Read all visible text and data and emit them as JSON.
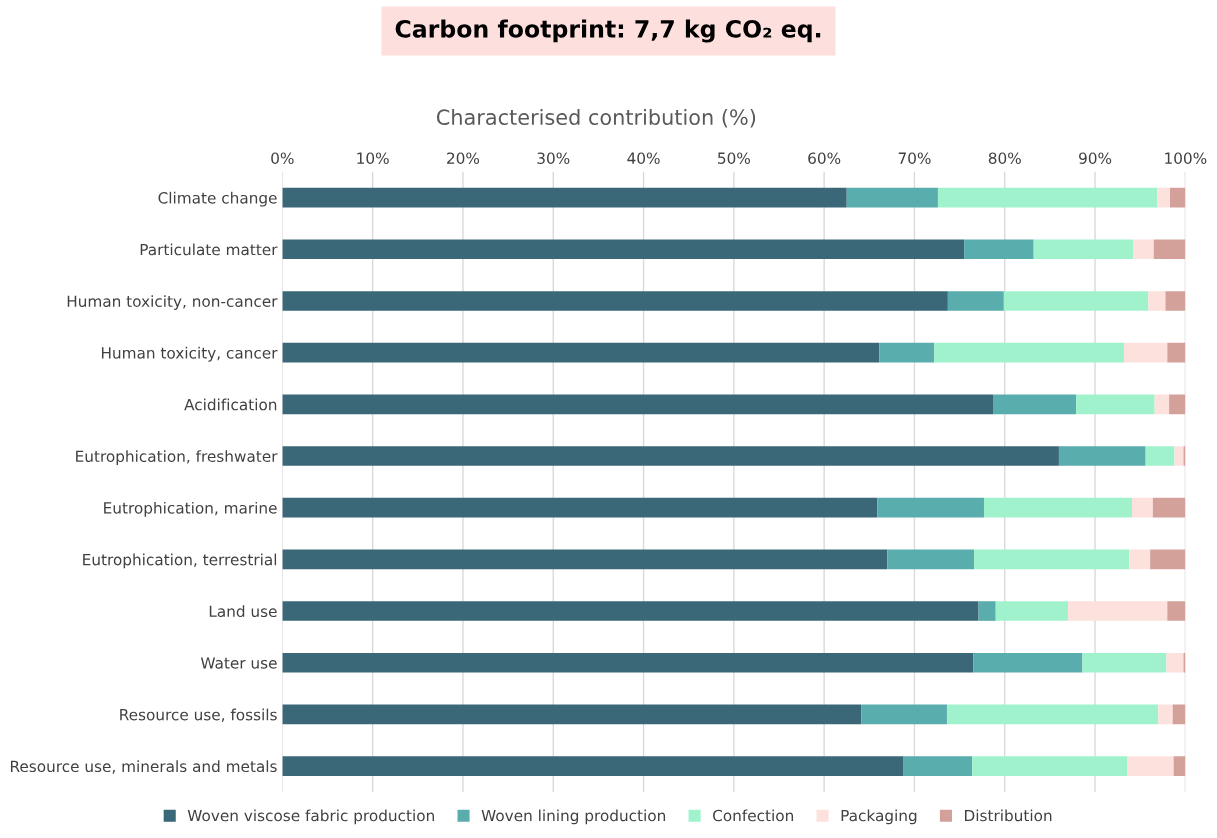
{
  "chart_data": {
    "type": "bar",
    "orientation": "horizontal",
    "stacked": true,
    "title": "Carbon footprint: 7,7 kg CO₂ eq.",
    "subtitle": "Characterised contribution (%)",
    "categories": [
      "Climate change",
      "Particulate matter",
      "Human toxicity, non-cancer",
      "Human toxicity, cancer",
      "Acidification",
      "Eutrophication, freshwater",
      "Eutrophication, marine",
      "Eutrophication, terrestrial",
      "Land use",
      "Water use",
      "Resource use, fossils",
      "Resource use, minerals and metals"
    ],
    "series": [
      {
        "name": "Woven viscose fabric production",
        "color": "#3b6878",
        "values": [
          62.5,
          75.5,
          73.7,
          66.1,
          78.7,
          86.0,
          65.9,
          67.0,
          77.1,
          76.5,
          64.1,
          68.8
        ]
      },
      {
        "name": "Woven lining production",
        "color": "#5aadad",
        "values": [
          10.1,
          7.7,
          6.2,
          6.1,
          9.2,
          9.6,
          11.8,
          9.6,
          1.9,
          12.1,
          9.5,
          7.6
        ]
      },
      {
        "name": "Confection",
        "color": "#a0f2cd",
        "values": [
          24.3,
          11.0,
          16.0,
          21.0,
          8.7,
          3.2,
          16.4,
          17.2,
          8.0,
          9.3,
          23.4,
          17.2
        ]
      },
      {
        "name": "Packaging",
        "color": "#fde1dd",
        "values": [
          1.4,
          2.3,
          1.9,
          4.8,
          1.6,
          1.0,
          2.3,
          2.3,
          11.0,
          1.9,
          1.6,
          5.1
        ]
      },
      {
        "name": "Distribution",
        "color": "#d3a19a",
        "values": [
          1.7,
          3.5,
          2.2,
          2.0,
          1.8,
          0.2,
          3.6,
          3.9,
          2.0,
          0.2,
          1.4,
          1.3
        ]
      }
    ],
    "xlim": [
      0,
      100
    ],
    "xticks": [
      {
        "value": 0,
        "label": "0%"
      },
      {
        "value": 10,
        "label": "10%"
      },
      {
        "value": 20,
        "label": "20%"
      },
      {
        "value": 30,
        "label": "30%"
      },
      {
        "value": 40,
        "label": "40%"
      },
      {
        "value": 50,
        "label": "50%"
      },
      {
        "value": 60,
        "label": "60%"
      },
      {
        "value": 70,
        "label": "70%"
      },
      {
        "value": 80,
        "label": "80%"
      },
      {
        "value": 90,
        "label": "90%"
      },
      {
        "value": 100,
        "label": "100%"
      }
    ],
    "grid": "x",
    "legend": "bottom"
  }
}
